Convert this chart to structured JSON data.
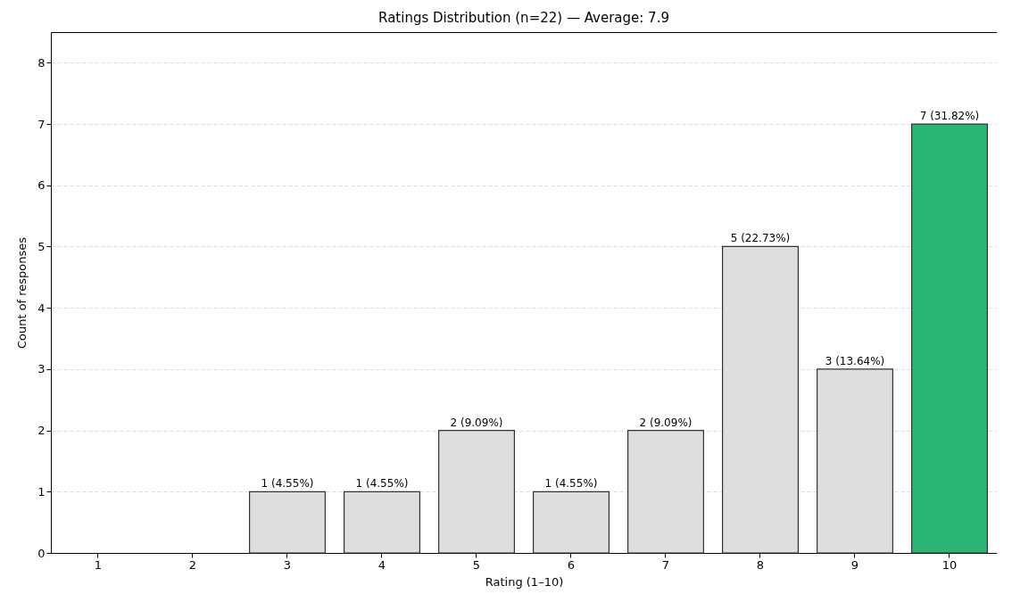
{
  "chart_data": {
    "type": "bar",
    "title": "Ratings Distribution (n=22) — Average: 7.9",
    "xlabel": "Rating (1–10)",
    "ylabel": "Count of responses",
    "categories": [
      "1",
      "2",
      "3",
      "4",
      "5",
      "6",
      "7",
      "8",
      "9",
      "10"
    ],
    "values": [
      0,
      0,
      1,
      1,
      2,
      1,
      2,
      5,
      3,
      7
    ],
    "colors": [
      "#dedede",
      "#dedede",
      "#dedede",
      "#dedede",
      "#dedede",
      "#dedede",
      "#dedede",
      "#dedede",
      "#dedede",
      "#2bb673"
    ],
    "value_labels": [
      null,
      null,
      "1 (4.55%)",
      "1 (4.55%)",
      "2 (9.09%)",
      "1 (4.55%)",
      "2 (9.09%)",
      "5 (22.73%)",
      "3 (13.64%)",
      "7 (31.82%)"
    ],
    "ylim": [
      0,
      8.5
    ],
    "yticks": [
      0,
      1,
      2,
      3,
      4,
      5,
      6,
      7,
      8
    ],
    "grid": "y"
  }
}
